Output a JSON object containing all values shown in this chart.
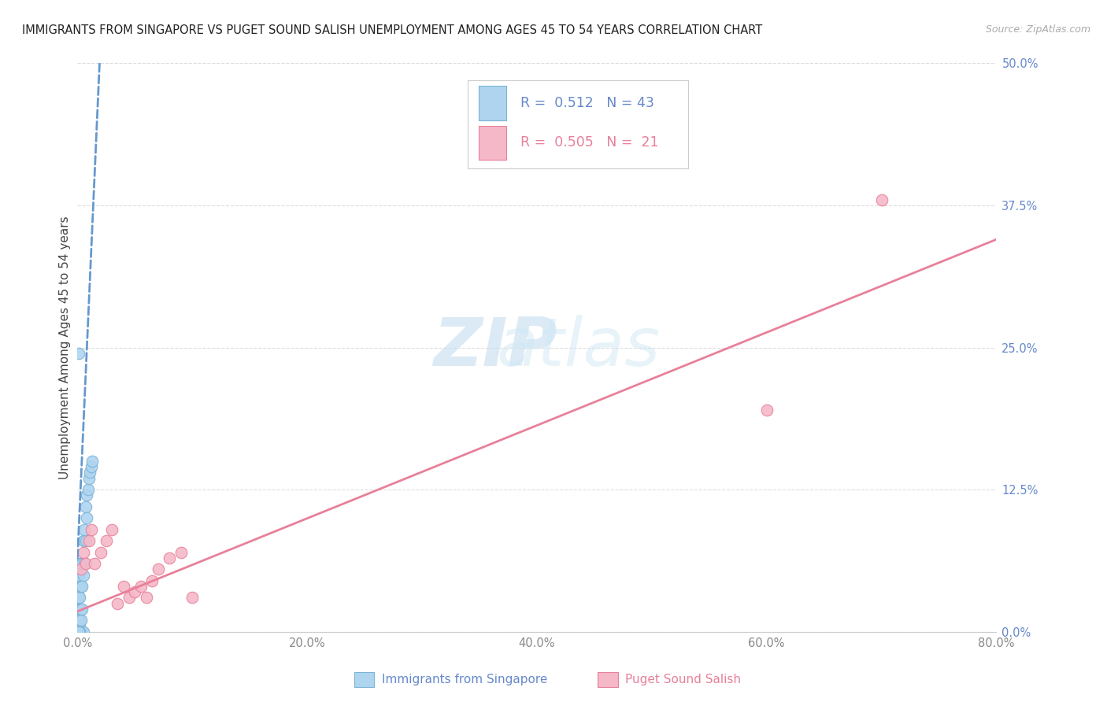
{
  "title": "IMMIGRANTS FROM SINGAPORE VS PUGET SOUND SALISH UNEMPLOYMENT AMONG AGES 45 TO 54 YEARS CORRELATION CHART",
  "source": "Source: ZipAtlas.com",
  "ylabel": "Unemployment Among Ages 45 to 54 years",
  "xlim": [
    0.0,
    0.8
  ],
  "ylim": [
    0.0,
    0.5
  ],
  "yticks": [
    0.0,
    0.125,
    0.25,
    0.375,
    0.5
  ],
  "ytick_labels": [
    "0.0%",
    "12.5%",
    "25.0%",
    "37.5%",
    "50.0%"
  ],
  "xticks": [
    0.0,
    0.2,
    0.4,
    0.6,
    0.8
  ],
  "xtick_labels": [
    "0.0%",
    "20.0%",
    "40.0%",
    "60.0%",
    "80.0%"
  ],
  "blue_fill": "#aed4ef",
  "blue_edge": "#7ab3d8",
  "pink_fill": "#f5b8c8",
  "pink_edge": "#e8809a",
  "blue_line_color": "#6699cc",
  "pink_line_color": "#e8809a",
  "R_blue": 0.512,
  "N_blue": 43,
  "R_pink": 0.505,
  "N_pink": 21,
  "legend_label_blue": "Immigrants from Singapore",
  "legend_label_pink": "Puget Sound Salish",
  "background_color": "#ffffff",
  "grid_color": "#dddddd",
  "watermark_zip": "ZIP",
  "watermark_atlas": "atlas",
  "title_fontsize": 10.5,
  "source_fontsize": 9,
  "tick_fontsize": 10.5,
  "ylabel_fontsize": 11,
  "legend_fontsize": 12.5
}
